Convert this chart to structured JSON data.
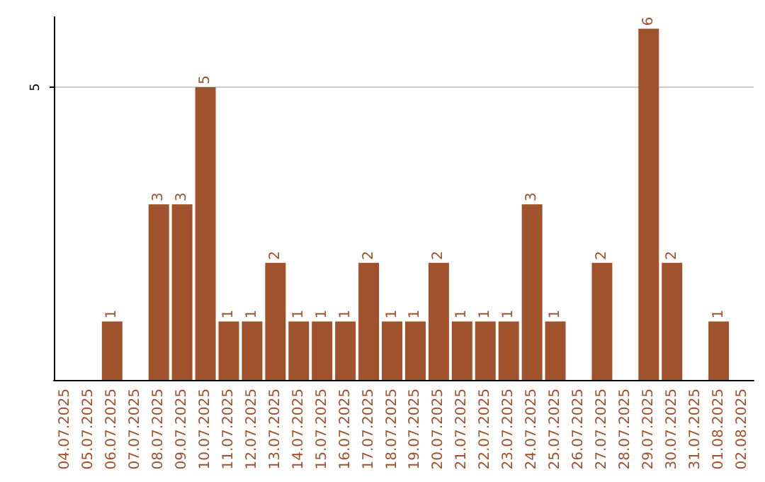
{
  "chart_data": {
    "type": "bar",
    "categories": [
      "04.07.2025",
      "05.07.2025",
      "06.07.2025",
      "07.07.2025",
      "08.07.2025",
      "09.07.2025",
      "10.07.2025",
      "11.07.2025",
      "12.07.2025",
      "13.07.2025",
      "14.07.2025",
      "15.07.2025",
      "16.07.2025",
      "17.07.2025",
      "18.07.2025",
      "19.07.2025",
      "20.07.2025",
      "21.07.2025",
      "22.07.2025",
      "23.07.2025",
      "24.07.2025",
      "25.07.2025",
      "26.07.2025",
      "27.07.2025",
      "28.07.2025",
      "29.07.2025",
      "30.07.2025",
      "31.07.2025",
      "01.08.2025",
      "02.08.2025"
    ],
    "values": [
      0,
      0,
      1,
      0,
      3,
      3,
      5,
      1,
      1,
      2,
      1,
      1,
      1,
      2,
      1,
      1,
      2,
      1,
      1,
      1,
      3,
      1,
      0,
      2,
      0,
      6,
      2,
      0,
      1,
      0
    ],
    "value_labels": [
      null,
      null,
      "1",
      null,
      "3",
      "3",
      "5",
      "1",
      "1",
      "2",
      "1",
      "1",
      "1",
      "2",
      "1",
      "1",
      "2",
      "1",
      "1",
      "1",
      "3",
      "1",
      null,
      "2",
      null,
      "6",
      "2",
      null,
      "1",
      null
    ],
    "color": "#a0522d",
    "ylim": [
      0,
      6.2
    ],
    "yticks": [
      5
    ],
    "grid": "y"
  }
}
